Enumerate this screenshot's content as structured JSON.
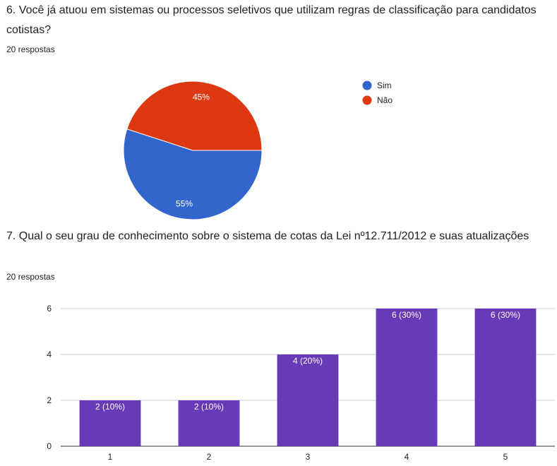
{
  "questions": [
    {
      "title": "6. Você já atuou em sistemas ou processos seletivos que utilizam regras de classificação para candidatos cotistas?",
      "responses": "20 respostas"
    },
    {
      "title": "7. Qual o seu grau de conhecimento sobre o sistema de cotas da Lei nº12.711/2012 e suas atualizações",
      "responses": "20 respostas"
    }
  ],
  "chart_data": [
    {
      "type": "pie",
      "legend_position": "right",
      "slices": [
        {
          "label": "Sim",
          "value": 55,
          "display": "55%",
          "color": "#3366cc"
        },
        {
          "label": "Não",
          "value": 45,
          "display": "45%",
          "color": "#dc3912"
        }
      ]
    },
    {
      "type": "bar",
      "categories": [
        "1",
        "2",
        "3",
        "4",
        "5"
      ],
      "values": [
        2,
        2,
        4,
        6,
        6
      ],
      "data_labels": [
        "2 (10%)",
        "2 (10%)",
        "4 (20%)",
        "6 (30%)",
        "6 (30%)"
      ],
      "ylim": [
        0,
        6
      ],
      "yticks": [
        "0",
        "2",
        "4",
        "6"
      ],
      "grid": true,
      "color": "#673ab7"
    }
  ]
}
